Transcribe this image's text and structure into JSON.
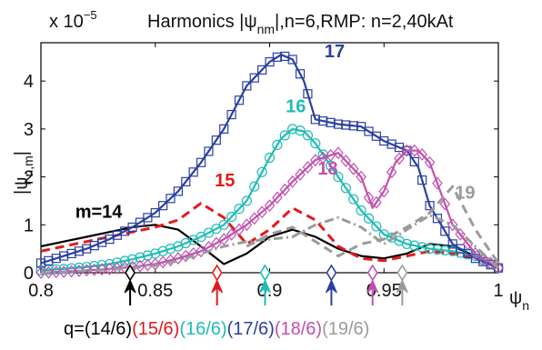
{
  "chart_data": {
    "type": "line",
    "title": "Harmonics |ψnm|,n=6,RMP: n=2,40kAt",
    "title_parts": {
      "prefix": "Harmonics |",
      "psi": "ψ",
      "sub": "nm",
      "suffix": "|,n=6,RMP: n=2,40kAt"
    },
    "scale_label": {
      "base": "x 10",
      "exponent": "−5"
    },
    "xlabel": {
      "symbol": "ψ",
      "sub": "n"
    },
    "ylabel": {
      "text": "|ψ",
      "sub": "n,m",
      "close": "|"
    },
    "xlim": [
      0.8,
      1.0
    ],
    "ylim": [
      0,
      4.8
    ],
    "x_ticks": [
      0.8,
      0.85,
      0.9,
      0.95,
      1.0
    ],
    "x_tick_labels": [
      "0.8",
      "0.85",
      "0.9",
      "0.95",
      "1"
    ],
    "y_ticks": [
      0,
      1,
      2,
      3,
      4
    ],
    "y_tick_labels": [
      "0",
      "1",
      "2",
      "3",
      "4"
    ],
    "series": [
      {
        "name": "m=14",
        "color": "#000000",
        "dash": "solid",
        "marker": "none",
        "label": "m=14",
        "label_x": 0.815,
        "label_y": 1.15,
        "x": [
          0.8,
          0.81,
          0.82,
          0.83,
          0.84,
          0.85,
          0.86,
          0.87,
          0.88,
          0.89,
          0.9,
          0.91,
          0.92,
          0.93,
          0.94,
          0.95,
          0.96,
          0.97,
          0.98,
          0.99,
          1.0
        ],
        "y": [
          0.55,
          0.65,
          0.75,
          0.85,
          0.95,
          1.0,
          0.9,
          0.55,
          0.18,
          0.4,
          0.75,
          0.9,
          0.75,
          0.5,
          0.35,
          0.3,
          0.4,
          0.6,
          0.55,
          0.35,
          0.1
        ]
      },
      {
        "name": "15",
        "color": "#e21a1c",
        "dash": "dashed",
        "marker": "none",
        "label": "15",
        "label_x": 0.876,
        "label_y": 1.8,
        "x": [
          0.8,
          0.81,
          0.82,
          0.83,
          0.84,
          0.85,
          0.86,
          0.87,
          0.88,
          0.89,
          0.9,
          0.91,
          0.92,
          0.93,
          0.94,
          0.95,
          0.96,
          0.97,
          0.98,
          0.99,
          1.0
        ],
        "y": [
          0.45,
          0.55,
          0.65,
          0.75,
          0.85,
          0.95,
          1.1,
          1.45,
          1.15,
          0.6,
          0.9,
          1.35,
          1.1,
          0.55,
          0.3,
          0.25,
          0.35,
          0.45,
          0.4,
          0.3,
          0.1
        ]
      },
      {
        "name": "16",
        "color": "#1fbcb6",
        "dash": "solid",
        "marker": "circle",
        "label": "16",
        "label_x": 0.907,
        "label_y": 3.35,
        "x": [
          0.8,
          0.81,
          0.82,
          0.83,
          0.84,
          0.85,
          0.86,
          0.87,
          0.88,
          0.89,
          0.9,
          0.905,
          0.91,
          0.915,
          0.92,
          0.93,
          0.94,
          0.95,
          0.96,
          0.97,
          0.98,
          0.99,
          1.0
        ],
        "y": [
          0.05,
          0.08,
          0.12,
          0.18,
          0.28,
          0.4,
          0.55,
          0.75,
          1.0,
          1.5,
          2.4,
          2.8,
          3.0,
          2.95,
          2.7,
          2.0,
          1.3,
          0.8,
          0.6,
          0.5,
          0.45,
          0.35,
          0.1
        ]
      },
      {
        "name": "17",
        "color": "#2b3fa0",
        "dash": "solid",
        "marker": "square",
        "label": "17",
        "label_x": 0.924,
        "label_y": 4.5,
        "x": [
          0.8,
          0.81,
          0.82,
          0.83,
          0.84,
          0.85,
          0.86,
          0.87,
          0.88,
          0.89,
          0.9,
          0.905,
          0.91,
          0.915,
          0.92,
          0.93,
          0.94,
          0.95,
          0.96,
          0.965,
          0.97,
          0.98,
          0.99,
          1.0
        ],
        "y": [
          0.2,
          0.35,
          0.5,
          0.7,
          0.95,
          1.25,
          1.7,
          2.3,
          3.0,
          3.9,
          4.4,
          4.55,
          4.45,
          4.0,
          3.2,
          3.1,
          3.05,
          2.75,
          2.55,
          2.2,
          1.4,
          0.6,
          0.3,
          0.1
        ]
      },
      {
        "name": "18",
        "color": "#c24fb0",
        "dash": "solid",
        "marker": "diamond",
        "label": "18",
        "label_x": 0.921,
        "label_y": 2.05,
        "x": [
          0.8,
          0.81,
          0.82,
          0.83,
          0.84,
          0.85,
          0.86,
          0.87,
          0.88,
          0.89,
          0.9,
          0.91,
          0.92,
          0.93,
          0.94,
          0.945,
          0.95,
          0.955,
          0.96,
          0.965,
          0.97,
          0.98,
          0.99,
          1.0
        ],
        "y": [
          0.0,
          0.02,
          0.05,
          0.08,
          0.12,
          0.18,
          0.3,
          0.45,
          0.7,
          1.0,
          1.4,
          1.9,
          2.35,
          2.5,
          2.0,
          1.35,
          1.7,
          2.3,
          2.55,
          2.55,
          2.3,
          1.0,
          0.4,
          0.1
        ]
      },
      {
        "name": "19",
        "color": "#9b9b9b",
        "dash": "dashdot",
        "marker": "none",
        "label": "19",
        "label_x": 0.981,
        "label_y": 1.55,
        "x": [
          0.8,
          0.81,
          0.82,
          0.83,
          0.84,
          0.85,
          0.86,
          0.87,
          0.88,
          0.89,
          0.9,
          0.91,
          0.92,
          0.93,
          0.94,
          0.95,
          0.96,
          0.97,
          0.98,
          0.99,
          1.0
        ],
        "y": [
          0.0,
          0.02,
          0.04,
          0.06,
          0.1,
          0.15,
          0.25,
          0.4,
          0.55,
          0.65,
          0.7,
          0.75,
          1.0,
          1.15,
          0.95,
          0.6,
          0.9,
          1.2,
          1.0,
          0.55,
          0.1
        ]
      },
      {
        "name": "19b",
        "color": "#9b9b9b",
        "dash": "dashed",
        "marker": "none",
        "label": "",
        "label_x": 0,
        "label_y": 0,
        "x": [
          0.89,
          0.9,
          0.91,
          0.92,
          0.93,
          0.94,
          0.95,
          0.96,
          0.97,
          0.98,
          0.99,
          1.0
        ],
        "y": [
          0.55,
          0.8,
          0.95,
          0.65,
          0.35,
          0.6,
          0.7,
          0.95,
          1.25,
          1.8,
          0.9,
          0.2
        ]
      }
    ],
    "q_markers": {
      "prefix": "q=",
      "items": [
        {
          "label": "(14/6)",
          "x": 0.839,
          "color": "#000000"
        },
        {
          "label": "(15/6)",
          "x": 0.877,
          "color": "#e21a1c"
        },
        {
          "label": "(16/6)",
          "x": 0.898,
          "color": "#1fbcb6"
        },
        {
          "label": "(17/6)",
          "x": 0.927,
          "color": "#2b3fa0"
        },
        {
          "label": "(18/6)",
          "x": 0.945,
          "color": "#c24fb0"
        },
        {
          "label": "(19/6)",
          "x": 0.958,
          "color": "#9b9b9b"
        }
      ]
    },
    "grid": false
  }
}
